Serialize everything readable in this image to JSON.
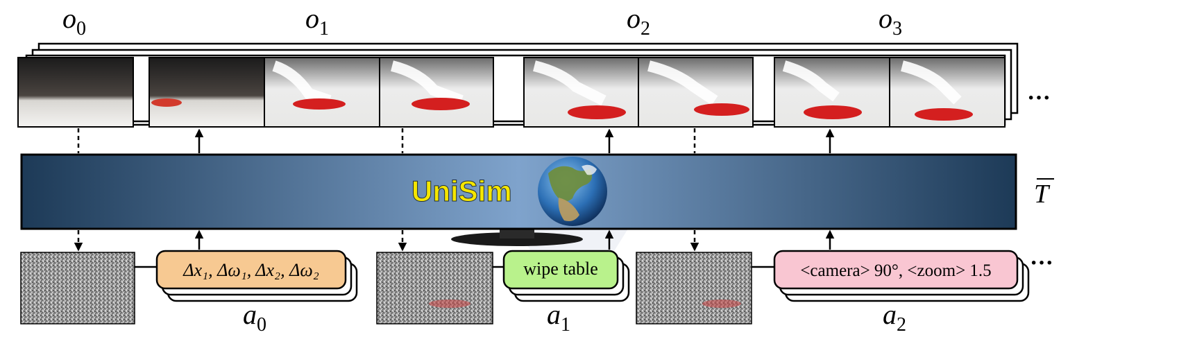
{
  "observations": [
    {
      "label": "o",
      "sub": "0"
    },
    {
      "label": "o",
      "sub": "1"
    },
    {
      "label": "o",
      "sub": "2"
    },
    {
      "label": "o",
      "sub": "3"
    }
  ],
  "model": {
    "name": "UniSim",
    "operator_symbol": "T",
    "name_color": "#f5e600"
  },
  "actions": [
    {
      "text": "Δx₁, Δω₁, Δx₂, Δω₂",
      "label": "a",
      "sub": "0",
      "fill": "#f7c992"
    },
    {
      "text": "wipe table",
      "label": "a",
      "sub": "1",
      "fill": "#b9f28c"
    },
    {
      "text": "<camera> 90°, <zoom> 1.5",
      "label": "a",
      "sub": "2",
      "fill": "#f9c6d2"
    }
  ],
  "ellipsis": "···"
}
